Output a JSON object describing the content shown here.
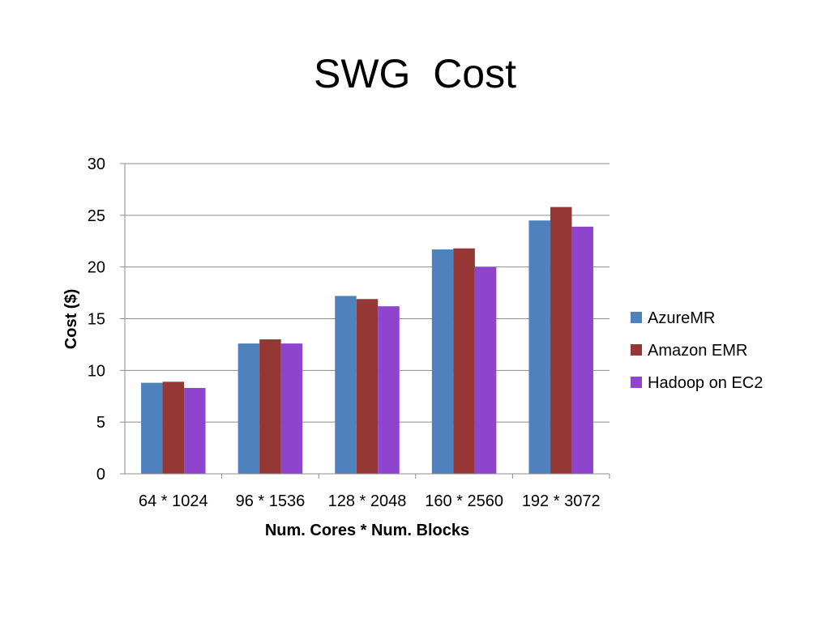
{
  "slide": {
    "title": "SWG  Cost"
  },
  "chart_data": {
    "type": "bar",
    "title": "SWG  Cost",
    "xlabel": "Num. Cores * Num. Blocks",
    "ylabel": "Cost ($)",
    "ylim": [
      0,
      30
    ],
    "yticks": [
      "0",
      "5",
      "10",
      "15",
      "20",
      "25",
      "30"
    ],
    "grid": true,
    "legend_position": "right",
    "categories": [
      "64 * 1024",
      "96 * 1536",
      "128 * 2048",
      "160 * 2560",
      "192 * 3072"
    ],
    "series": [
      {
        "name": "AzureMR",
        "color": "#4f81bd",
        "values": [
          8.8,
          12.6,
          17.2,
          21.7,
          24.5
        ]
      },
      {
        "name": "Amazon EMR",
        "color": "#953735",
        "values": [
          8.9,
          13.0,
          16.9,
          21.8,
          25.8
        ]
      },
      {
        "name": "Hadoop on EC2",
        "color": "#8e44cc",
        "values": [
          8.3,
          12.6,
          16.2,
          20.0,
          23.9
        ]
      }
    ]
  }
}
